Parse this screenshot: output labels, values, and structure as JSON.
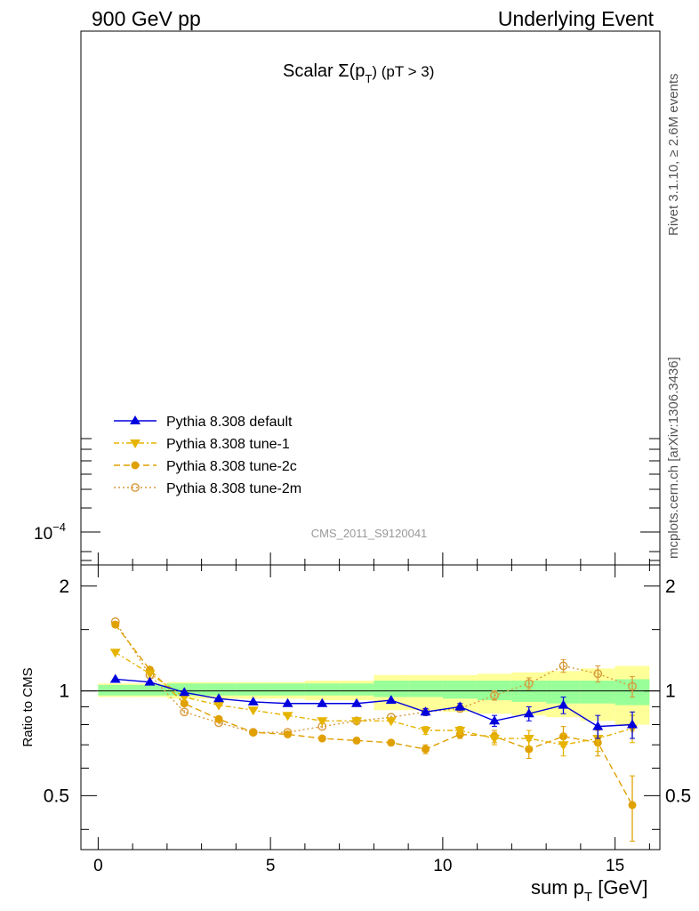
{
  "header": {
    "left": "900 GeV pp",
    "right": "Underlying Event"
  },
  "plot_title": {
    "main": "Scalar Σ(p",
    "sub": "T",
    "tail": ") (pT >  3)"
  },
  "side_labels": {
    "top": "Rivet 3.1.10, ≥ 2.6M events",
    "bottom": "mcplots.cern.ch [arXiv:1306.3436]"
  },
  "reference_label": "CMS_2011_S9120041",
  "main_panel": {
    "y_tick_base": "10",
    "y_tick_exp": "−4"
  },
  "legend": [
    {
      "label": "Pythia 8.308 default",
      "color": "#0000dd",
      "marker": "triangle-up",
      "line": "solid"
    },
    {
      "label": "Pythia 8.308 tune-1",
      "color": "#e6b400",
      "marker": "triangle-down",
      "line": "dashdot"
    },
    {
      "label": "Pythia 8.308 tune-2c",
      "color": "#e0a000",
      "marker": "circle",
      "line": "dashed"
    },
    {
      "label": "Pythia 8.308 tune-2m",
      "color": "#d79a3a",
      "marker": "circle-open",
      "line": "dotted"
    }
  ],
  "chart_data": {
    "type": "line",
    "ylabel": "Ratio to CMS",
    "xlabel_main": "sum p",
    "xlabel_sub": "T",
    "xlabel_tail": " [GeV]",
    "xlim": [
      -0.5,
      16.3
    ],
    "ylim": [
      0.35,
      2.3
    ],
    "x_ticks": [
      "0",
      "5",
      "10",
      "15"
    ],
    "y_ticks": [
      {
        "value": 0.5,
        "label": "0.5"
      },
      {
        "value": 1,
        "label": "1"
      },
      {
        "value": 2,
        "label": "2"
      }
    ],
    "x": [
      0.5,
      1.5,
      2.5,
      3.5,
      4.5,
      5.5,
      6.5,
      7.5,
      8.5,
      9.5,
      10.5,
      11.5,
      12.5,
      13.5,
      14.5,
      15.5
    ],
    "band_inner": [
      {
        "x0": 0,
        "x1": 1,
        "lo": 0.97,
        "hi": 1.04
      },
      {
        "x0": 1,
        "x1": 2,
        "lo": 0.97,
        "hi": 1.04
      },
      {
        "x0": 2,
        "x1": 3,
        "lo": 0.97,
        "hi": 1.05
      },
      {
        "x0": 3,
        "x1": 4,
        "lo": 0.97,
        "hi": 1.05
      },
      {
        "x0": 4,
        "x1": 5,
        "lo": 0.97,
        "hi": 1.05
      },
      {
        "x0": 5,
        "x1": 6,
        "lo": 0.97,
        "hi": 1.05
      },
      {
        "x0": 6,
        "x1": 7,
        "lo": 0.97,
        "hi": 1.05
      },
      {
        "x0": 7,
        "x1": 8,
        "lo": 0.97,
        "hi": 1.05
      },
      {
        "x0": 8,
        "x1": 9,
        "lo": 0.96,
        "hi": 1.07
      },
      {
        "x0": 9,
        "x1": 10,
        "lo": 0.96,
        "hi": 1.07
      },
      {
        "x0": 10,
        "x1": 11,
        "lo": 0.95,
        "hi": 1.07
      },
      {
        "x0": 11,
        "x1": 12,
        "lo": 0.94,
        "hi": 1.07
      },
      {
        "x0": 12,
        "x1": 13,
        "lo": 0.93,
        "hi": 1.07
      },
      {
        "x0": 13,
        "x1": 14,
        "lo": 0.92,
        "hi": 1.07
      },
      {
        "x0": 14,
        "x1": 15,
        "lo": 0.92,
        "hi": 1.07
      },
      {
        "x0": 15,
        "x1": 16,
        "lo": 0.91,
        "hi": 1.08
      }
    ],
    "band_outer": [
      {
        "x0": 0,
        "x1": 1,
        "lo": 0.96,
        "hi": 1.05
      },
      {
        "x0": 1,
        "x1": 2,
        "lo": 0.96,
        "hi": 1.05
      },
      {
        "x0": 2,
        "x1": 3,
        "lo": 0.95,
        "hi": 1.06
      },
      {
        "x0": 3,
        "x1": 4,
        "lo": 0.95,
        "hi": 1.06
      },
      {
        "x0": 4,
        "x1": 5,
        "lo": 0.95,
        "hi": 1.06
      },
      {
        "x0": 5,
        "x1": 6,
        "lo": 0.95,
        "hi": 1.06
      },
      {
        "x0": 6,
        "x1": 7,
        "lo": 0.94,
        "hi": 1.07
      },
      {
        "x0": 7,
        "x1": 8,
        "lo": 0.94,
        "hi": 1.07
      },
      {
        "x0": 8,
        "x1": 9,
        "lo": 0.88,
        "hi": 1.11
      },
      {
        "x0": 9,
        "x1": 10,
        "lo": 0.88,
        "hi": 1.11
      },
      {
        "x0": 10,
        "x1": 11,
        "lo": 0.87,
        "hi": 1.11
      },
      {
        "x0": 11,
        "x1": 12,
        "lo": 0.86,
        "hi": 1.12
      },
      {
        "x0": 12,
        "x1": 13,
        "lo": 0.85,
        "hi": 1.13
      },
      {
        "x0": 13,
        "x1": 14,
        "lo": 0.84,
        "hi": 1.14
      },
      {
        "x0": 14,
        "x1": 15,
        "lo": 0.82,
        "hi": 1.16
      },
      {
        "x0": 15,
        "x1": 16,
        "lo": 0.8,
        "hi": 1.18
      }
    ],
    "series": [
      {
        "name": "Pythia 8.308 default",
        "y": [
          1.08,
          1.06,
          0.99,
          0.95,
          0.93,
          0.92,
          0.92,
          0.92,
          0.94,
          0.87,
          0.9,
          0.82,
          0.86,
          0.91,
          0.79,
          0.8
        ],
        "err": [
          0.01,
          0.01,
          0.01,
          0.01,
          0.01,
          0.01,
          0.01,
          0.01,
          0.01,
          0.02,
          0.02,
          0.03,
          0.04,
          0.05,
          0.06,
          0.07
        ]
      },
      {
        "name": "Pythia 8.308 tune-1",
        "y": [
          1.29,
          1.12,
          0.96,
          0.91,
          0.88,
          0.85,
          0.82,
          0.82,
          0.82,
          0.77,
          0.77,
          0.73,
          0.73,
          0.7,
          0.73,
          0.78
        ],
        "err": [
          0.01,
          0.01,
          0.01,
          0.01,
          0.01,
          0.01,
          0.01,
          0.01,
          0.01,
          0.02,
          0.02,
          0.03,
          0.04,
          0.05,
          0.06,
          0.07
        ]
      },
      {
        "name": "Pythia 8.308 tune-2c",
        "y": [
          1.55,
          1.15,
          0.92,
          0.83,
          0.76,
          0.75,
          0.73,
          0.72,
          0.71,
          0.68,
          0.75,
          0.74,
          0.68,
          0.74,
          0.71,
          0.47
        ],
        "err": [
          0.01,
          0.01,
          0.01,
          0.01,
          0.01,
          0.01,
          0.01,
          0.01,
          0.01,
          0.02,
          0.02,
          0.03,
          0.04,
          0.05,
          0.06,
          0.1
        ]
      },
      {
        "name": "Pythia 8.308 tune-2m",
        "y": [
          1.58,
          1.11,
          0.87,
          0.81,
          0.76,
          0.76,
          0.79,
          0.82,
          0.84,
          0.87,
          0.89,
          0.97,
          1.05,
          1.18,
          1.12,
          1.03
        ],
        "err": [
          0.01,
          0.01,
          0.01,
          0.01,
          0.01,
          0.01,
          0.01,
          0.01,
          0.01,
          0.02,
          0.02,
          0.03,
          0.04,
          0.05,
          0.06,
          0.07
        ]
      }
    ]
  }
}
